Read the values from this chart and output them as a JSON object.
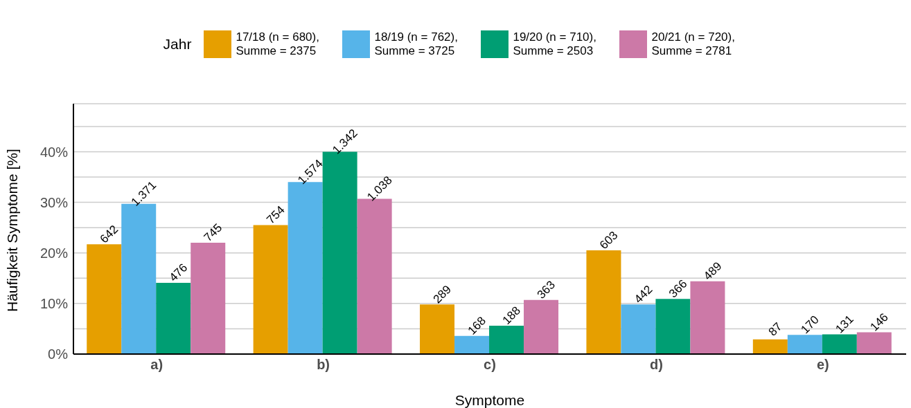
{
  "chart_data": {
    "type": "bar",
    "xlabel": "Symptome",
    "ylabel": "Häufigkeit Symptome [%]",
    "legend_title": "Jahr",
    "legend": "top",
    "grid": "y",
    "categories": [
      "a)",
      "b)",
      "c)",
      "d)",
      "e)"
    ],
    "ylim": [
      0,
      49.5
    ],
    "yticks": [
      {
        "value": 0,
        "label": "0%"
      },
      {
        "value": 5,
        "label": null
      },
      {
        "value": 10,
        "label": "10%"
      },
      {
        "value": 15,
        "label": null
      },
      {
        "value": 20,
        "label": "20%"
      },
      {
        "value": 25,
        "label": null
      },
      {
        "value": 30,
        "label": "30%"
      },
      {
        "value": 35,
        "label": null
      },
      {
        "value": 40,
        "label": "40%"
      },
      {
        "value": 45,
        "label": null
      }
    ],
    "series": [
      {
        "name": "17/18 (n = 680), Summe = 2375",
        "color": "#e69f00",
        "values": [
          21.7,
          25.5,
          9.8,
          20.5,
          2.9
        ]
      },
      {
        "name": "18/19 (n = 762), Summe = 3725",
        "color": "#56b4e9",
        "values": [
          29.7,
          34.0,
          3.6,
          9.8,
          3.8
        ]
      },
      {
        "name": "19/20 (n = 710), Summe = 2503",
        "color": "#009e73",
        "values": [
          14.1,
          40.0,
          5.6,
          10.9,
          3.9
        ]
      },
      {
        "name": "20/21 (n = 720), Summe = 2781",
        "color": "#cc79a7",
        "values": [
          22.0,
          30.7,
          10.7,
          14.4,
          4.3
        ]
      }
    ],
    "annotations": [
      "642",
      "754",
      "289",
      "603",
      "87",
      "1.371",
      "1.574",
      "168",
      "442",
      "170",
      "476",
      "1.342",
      "188",
      "366",
      "131",
      "745",
      "1.038",
      "363",
      "489",
      "146"
    ]
  }
}
